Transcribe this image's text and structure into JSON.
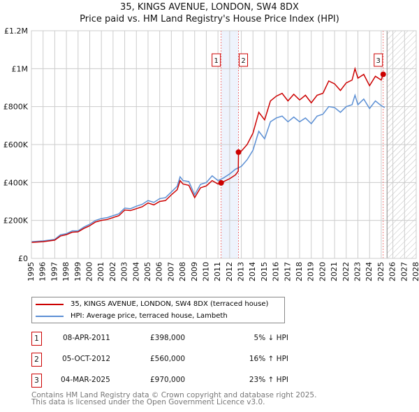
{
  "title_line1": "35, KINGS AVENUE, LONDON, SW4 8DX",
  "title_line2": "Price paid vs. HM Land Registry's House Price Index (HPI)",
  "chart_data": {
    "type": "line",
    "xlim": [
      1995,
      2028
    ],
    "ylim": [
      0,
      1200000
    ],
    "x_ticks": [
      "1995",
      "1996",
      "1997",
      "1998",
      "1999",
      "2000",
      "2001",
      "2002",
      "2003",
      "2004",
      "2005",
      "2006",
      "2007",
      "2008",
      "2009",
      "2010",
      "2011",
      "2012",
      "2013",
      "2014",
      "2015",
      "2016",
      "2017",
      "2018",
      "2019",
      "2020",
      "2021",
      "2022",
      "2023",
      "2024",
      "2025",
      "2026",
      "2027",
      "2028"
    ],
    "y_ticks": [
      {
        "v": 0,
        "label": "£0"
      },
      {
        "v": 200000,
        "label": "£200K"
      },
      {
        "v": 400000,
        "label": "£400K"
      },
      {
        "v": 600000,
        "label": "£600K"
      },
      {
        "v": 800000,
        "label": "£800K"
      },
      {
        "v": 1000000,
        "label": "£1M"
      },
      {
        "v": 1200000,
        "label": "£1.2M"
      }
    ],
    "grid": true,
    "shaded_span": [
      2011.27,
      2012.76
    ],
    "forecast_hatch_from": 2025.5,
    "series": [
      {
        "name": "35, KINGS AVENUE, LONDON, SW4 8DX (terraced house)",
        "color": "#cc0000",
        "x": [
          1995,
          1996,
          1997,
          1997.5,
          1998,
          1998.5,
          1999,
          1999.5,
          2000,
          2000.5,
          2001,
          2001.5,
          2002,
          2002.5,
          2003,
          2003.5,
          2004,
          2004.5,
          2005,
          2005.5,
          2006,
          2006.5,
          2007,
          2007.5,
          2007.75,
          2008,
          2008.5,
          2009,
          2009.5,
          2010,
          2010.5,
          2011,
          2011.27,
          2011.5,
          2012,
          2012.5,
          2012.74,
          2012.76,
          2013,
          2013.5,
          2014,
          2014.5,
          2015,
          2015.5,
          2016,
          2016.5,
          2017,
          2017.5,
          2018,
          2018.5,
          2019,
          2019.5,
          2020,
          2020.5,
          2021,
          2021.5,
          2022,
          2022.5,
          2022.75,
          2023,
          2023.5,
          2024,
          2024.5,
          2025,
          2025.17
        ],
        "y": [
          84000,
          88000,
          96000,
          118000,
          125000,
          138000,
          140000,
          158000,
          172000,
          192000,
          200000,
          205000,
          215000,
          225000,
          255000,
          252000,
          262000,
          272000,
          292000,
          282000,
          300000,
          305000,
          335000,
          362000,
          410000,
          392000,
          385000,
          320000,
          372000,
          382000,
          410000,
          392000,
          398000,
          405000,
          420000,
          440000,
          460000,
          560000,
          565000,
          600000,
          660000,
          770000,
          730000,
          830000,
          855000,
          870000,
          830000,
          865000,
          835000,
          860000,
          820000,
          860000,
          870000,
          935000,
          920000,
          885000,
          925000,
          940000,
          1000000,
          950000,
          970000,
          910000,
          960000,
          940000,
          970000
        ]
      },
      {
        "name": "HPI: Average price, terraced house, Lambeth",
        "color": "#5b8fd4",
        "x": [
          1995,
          1996,
          1997,
          1997.5,
          1998,
          1998.5,
          1999,
          1999.5,
          2000,
          2000.5,
          2001,
          2001.5,
          2002,
          2002.5,
          2003,
          2003.5,
          2004,
          2004.5,
          2005,
          2005.5,
          2006,
          2006.5,
          2007,
          2007.5,
          2007.75,
          2008,
          2008.5,
          2009,
          2009.5,
          2010,
          2010.5,
          2011,
          2011.5,
          2012,
          2012.5,
          2013,
          2013.5,
          2014,
          2014.5,
          2015,
          2015.5,
          2016,
          2016.5,
          2017,
          2017.5,
          2018,
          2018.5,
          2019,
          2019.5,
          2020,
          2020.5,
          2021,
          2021.5,
          2022,
          2022.5,
          2022.75,
          2023,
          2023.5,
          2024,
          2024.5,
          2025,
          2025.3
        ],
        "y": [
          88000,
          92000,
          100000,
          125000,
          130000,
          145000,
          145000,
          165000,
          180000,
          200000,
          210000,
          215000,
          225000,
          235000,
          265000,
          262000,
          275000,
          285000,
          305000,
          295000,
          315000,
          320000,
          350000,
          380000,
          430000,
          410000,
          405000,
          335000,
          390000,
          400000,
          435000,
          410000,
          425000,
          445000,
          470000,
          485000,
          520000,
          570000,
          670000,
          630000,
          720000,
          740000,
          750000,
          720000,
          745000,
          720000,
          740000,
          710000,
          750000,
          760000,
          800000,
          795000,
          770000,
          800000,
          810000,
          860000,
          810000,
          840000,
          790000,
          830000,
          805000,
          795000
        ]
      }
    ],
    "markers": [
      {
        "id": "1",
        "x": 2011.27,
        "y": 398000
      },
      {
        "id": "2",
        "x": 2012.76,
        "y": 560000
      },
      {
        "id": "3",
        "x": 2025.17,
        "y": 970000
      }
    ]
  },
  "legend": [
    "35, KINGS AVENUE, LONDON, SW4 8DX (terraced house)",
    "HPI: Average price, terraced house, Lambeth"
  ],
  "transactions": [
    {
      "id": "1",
      "date": "08-APR-2011",
      "price": "£398,000",
      "hpi": "5% ↓ HPI"
    },
    {
      "id": "2",
      "date": "05-OCT-2012",
      "price": "£560,000",
      "hpi": "16% ↑ HPI"
    },
    {
      "id": "3",
      "date": "04-MAR-2025",
      "price": "£970,000",
      "hpi": "23% ↑ HPI"
    }
  ],
  "footer_line1": "Contains HM Land Registry data © Crown copyright and database right 2025.",
  "footer_line2": "This data is licensed under the Open Government Licence v3.0."
}
